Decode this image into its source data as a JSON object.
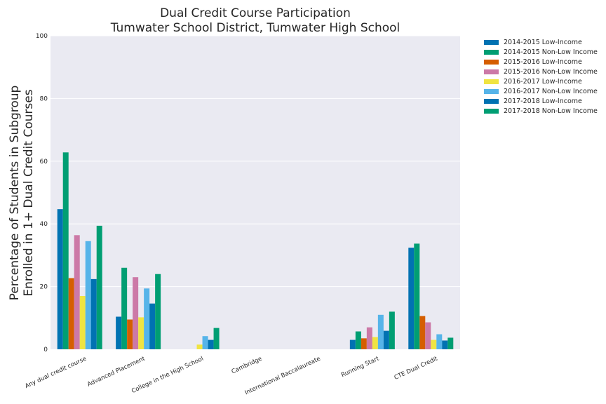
{
  "chart_data": {
    "type": "bar",
    "title": "Dual Credit Course Participation",
    "subtitle": "Tumwater School District, Tumwater High School",
    "ylabel_line1": "Percentage of Students in Subgroup",
    "ylabel_line2": "Enrolled in 1+ Dual Credit Courses",
    "xlabel": "",
    "ylim": [
      0,
      100
    ],
    "yticks": [
      "0",
      "20",
      "40",
      "60",
      "80",
      "100"
    ],
    "grid": true,
    "legend_position": "outside-top-right",
    "categories": [
      "Any dual credit course",
      "Advanced Placement",
      "College in the High School",
      "Cambridge",
      "International Baccalaureate",
      "Running Start",
      "CTE Dual Credit"
    ],
    "series": [
      {
        "name": "2014-2015 Low-Income",
        "color": "#0072b2",
        "values": [
          44.7,
          10.4,
          0,
          0,
          0,
          3.0,
          32.4
        ]
      },
      {
        "name": "2014-2015 Non-Low Income",
        "color": "#009e73",
        "values": [
          62.8,
          26.0,
          0,
          0,
          0,
          5.7,
          33.7
        ]
      },
      {
        "name": "2015-2016 Low-Income",
        "color": "#d55e00",
        "values": [
          22.7,
          9.5,
          0,
          0,
          0,
          3.5,
          10.6
        ]
      },
      {
        "name": "2015-2016 Non-Low Income",
        "color": "#cc79a7",
        "values": [
          36.4,
          23.0,
          0,
          0,
          0,
          7.0,
          8.6
        ]
      },
      {
        "name": "2016-2017 Low-Income",
        "color": "#f0e442",
        "values": [
          17.0,
          10.2,
          1.5,
          0,
          0,
          3.9,
          3.0
        ]
      },
      {
        "name": "2016-2017 Non-Low Income",
        "color": "#56b4e9",
        "values": [
          34.5,
          19.4,
          4.2,
          0,
          0,
          11.0,
          4.8
        ]
      },
      {
        "name": "2017-2018 Low-Income",
        "color": "#0072b2",
        "values": [
          22.4,
          14.6,
          3.0,
          0,
          0,
          5.9,
          2.8
        ]
      },
      {
        "name": "2017-2018 Non-Low Income",
        "color": "#009e73",
        "values": [
          39.4,
          24.0,
          6.8,
          0,
          0,
          12.0,
          3.7
        ]
      }
    ]
  }
}
